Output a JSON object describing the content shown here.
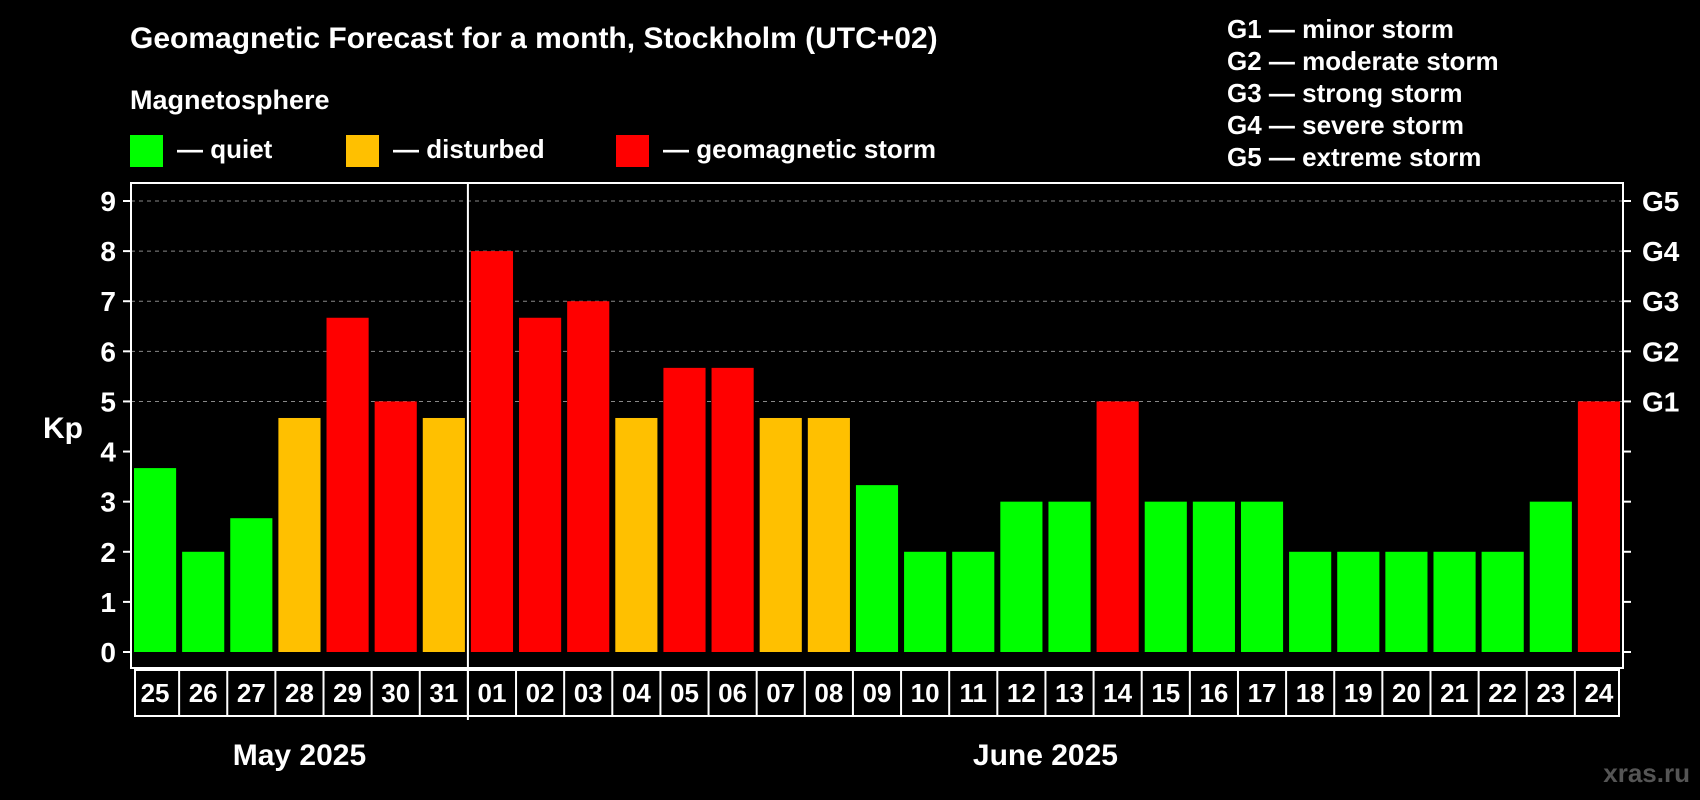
{
  "colors": {
    "quiet": "#00ff00",
    "disturbed": "#ffc000",
    "storm": "#ff0000",
    "background": "#000000",
    "axis": "#ffffff",
    "grid": "#888888"
  },
  "legend": {
    "heading": "Magnetosphere",
    "items": [
      {
        "key": "quiet",
        "label": "— quiet"
      },
      {
        "key": "disturbed",
        "label": "— disturbed"
      },
      {
        "key": "storm",
        "label": "— geomagnetic storm"
      }
    ]
  },
  "g_legend": [
    "G1 — minor storm",
    "G2 — moderate storm",
    "G3 — strong storm",
    "G4 — severe storm",
    "G5 — extreme storm"
  ],
  "watermark": "xras.ru",
  "chart_data": {
    "type": "bar",
    "title": "Geomagnetic Forecast for a month, Stockholm (UTC+02)",
    "ylabel": "Kp",
    "ylim": [
      0,
      9
    ],
    "yticks": [
      "0",
      "1",
      "2",
      "3",
      "4",
      "5",
      "6",
      "7",
      "8",
      "9"
    ],
    "g_scale": [
      {
        "label": "G1",
        "kp": 5
      },
      {
        "label": "G2",
        "kp": 6
      },
      {
        "label": "G3",
        "kp": 7
      },
      {
        "label": "G4",
        "kp": 8
      },
      {
        "label": "G5",
        "kp": 9
      }
    ],
    "categories": [
      "25",
      "26",
      "27",
      "28",
      "29",
      "30",
      "31",
      "01",
      "02",
      "03",
      "04",
      "05",
      "06",
      "07",
      "08",
      "09",
      "10",
      "11",
      "12",
      "13",
      "14",
      "15",
      "16",
      "17",
      "18",
      "19",
      "20",
      "21",
      "22",
      "23",
      "24"
    ],
    "values": [
      3.67,
      2,
      2.67,
      4.67,
      6.67,
      5,
      4.67,
      8,
      6.67,
      7,
      4.67,
      5.67,
      5.67,
      4.67,
      4.67,
      3.33,
      2,
      2,
      3,
      3,
      5,
      3,
      3,
      3,
      2,
      2,
      2,
      2,
      2,
      3,
      5
    ],
    "levels": [
      "quiet",
      "quiet",
      "quiet",
      "disturbed",
      "storm",
      "storm",
      "disturbed",
      "storm",
      "storm",
      "storm",
      "disturbed",
      "storm",
      "storm",
      "disturbed",
      "disturbed",
      "quiet",
      "quiet",
      "quiet",
      "quiet",
      "quiet",
      "storm",
      "quiet",
      "quiet",
      "quiet",
      "quiet",
      "quiet",
      "quiet",
      "quiet",
      "quiet",
      "quiet",
      "storm"
    ],
    "months": [
      {
        "label": "May 2025",
        "first_index": 0,
        "last_index": 6
      },
      {
        "label": "June 2025",
        "first_index": 7,
        "last_index": 30
      }
    ],
    "grid": true
  }
}
